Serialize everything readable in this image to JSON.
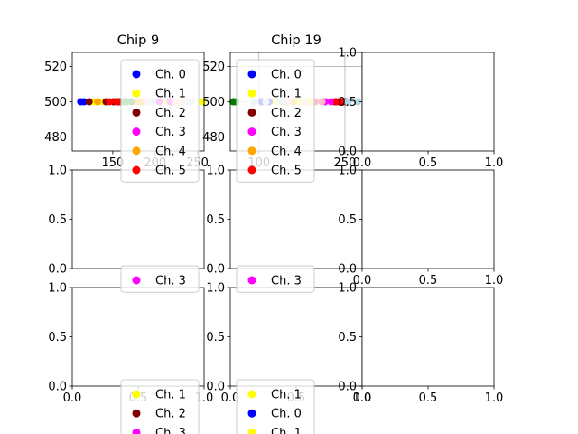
{
  "chart_data": [
    {
      "type": "scatter",
      "title": "Chip 9",
      "xlabel": "",
      "ylabel": "",
      "xlim": [
        102,
        258
      ],
      "ylim": [
        472,
        528
      ],
      "xticks": [
        150,
        200,
        250
      ],
      "yticks": [
        480,
        500,
        520
      ],
      "grid": false,
      "legend_position": "upper-right",
      "series": [
        {
          "name": "Ch. 0",
          "color": "#0000ff",
          "x": [
            112,
            116
          ],
          "y": [
            500,
            500
          ]
        },
        {
          "name": "Ch. 1",
          "color": "#ffff00",
          "x": [
            128,
            138,
            212,
            228,
            256
          ],
          "y": [
            500,
            500,
            500,
            500,
            500
          ]
        },
        {
          "name": "Ch. 2",
          "color": "#800000",
          "x": [
            122,
            142,
            151,
            157
          ],
          "y": [
            500,
            500,
            500,
            500
          ]
        },
        {
          "name": "Ch. 3",
          "color": "#ff00ff",
          "x": [
            205,
            218
          ],
          "y": [
            500,
            500
          ]
        },
        {
          "name": "Ch. 4",
          "color": "#ffa500",
          "x": [
            132,
            178,
            184
          ],
          "y": [
            500,
            500,
            500
          ]
        },
        {
          "name": "Ch. 5",
          "color": "#ff0000",
          "x": [
            146,
            154,
            160
          ],
          "y": [
            500,
            500,
            500
          ]
        },
        {
          "name": "",
          "color": "#008000",
          "x": [
            163,
            166,
            172
          ],
          "y": [
            500,
            500,
            500
          ]
        },
        {
          "name": "",
          "color": "#add8e6",
          "x": [
            196,
            238,
            243
          ],
          "y": [
            500,
            500,
            500
          ]
        },
        {
          "name": "",
          "color": "#ffc0cb",
          "x": [
            190,
            224,
            233
          ],
          "y": [
            500,
            500,
            500
          ]
        }
      ],
      "legend_visible": [
        "Ch. 0",
        "Ch. 1",
        "Ch. 2",
        "Ch. 3",
        "Ch. 4",
        "Ch. 5"
      ]
    },
    {
      "type": "scatter",
      "title": "Chip 19",
      "xlabel": "",
      "ylabel": "",
      "xlim": [
        50,
        280
      ],
      "ylim": [
        472,
        528
      ],
      "xticks": [
        100,
        250
      ],
      "yticks": [
        480,
        500,
        520
      ],
      "grid": true,
      "legend_position": "upper-left",
      "series": [
        {
          "name": "Ch. 0",
          "color": "#0000ff",
          "x": [
            105,
            118
          ],
          "y": [
            500,
            500
          ]
        },
        {
          "name": "Ch. 1",
          "color": "#ffff00",
          "x": [
            130,
            170,
            190
          ],
          "y": [
            500,
            500,
            500
          ]
        },
        {
          "name": "Ch. 2",
          "color": "#800000",
          "x": [
            233,
            240,
            244,
            252
          ],
          "y": [
            500,
            500,
            500,
            500
          ]
        },
        {
          "name": "Ch. 3",
          "color": "#ff00ff",
          "x": [
            215,
            226
          ],
          "y": [
            500,
            500
          ]
        },
        {
          "name": "Ch. 4",
          "color": "#ffa500",
          "x": [
            145,
            160
          ],
          "y": [
            500,
            500
          ]
        },
        {
          "name": "Ch. 5",
          "color": "#ff0000",
          "x": [
            236,
            248
          ],
          "y": [
            500,
            500
          ]
        },
        {
          "name": "",
          "color": "#008000",
          "x": [
            55,
            60
          ],
          "y": [
            500,
            500
          ]
        },
        {
          "name": "",
          "color": "#add8e6",
          "x": [
            92,
            112,
            138,
            255,
            272
          ],
          "y": [
            500,
            500,
            500,
            500,
            500
          ]
        },
        {
          "name": "",
          "color": "#ffc0cb",
          "x": [
            150,
            180,
            198,
            210
          ],
          "y": [
            500,
            500,
            500,
            500
          ]
        }
      ],
      "legend_visible": [
        "Ch. 0",
        "Ch. 1",
        "Ch. 2",
        "Ch. 3",
        "Ch. 4",
        "Ch. 5"
      ]
    },
    {
      "type": "scatter",
      "title": "",
      "xlim": [
        0,
        1
      ],
      "ylim": [
        0,
        1
      ],
      "xticks": [
        "0.0",
        "0.5",
        "1.0"
      ],
      "yticks": [
        "0.0",
        "0.5",
        "1.0"
      ],
      "series": []
    },
    {
      "type": "scatter",
      "title": "",
      "xlim": [
        0,
        1
      ],
      "ylim": [
        0,
        1
      ],
      "xticks": [],
      "yticks": [
        "0.0",
        "0.5",
        "1.0"
      ],
      "series": []
    },
    {
      "type": "scatter",
      "title": "",
      "xlim": [
        0,
        1
      ],
      "ylim": [
        0,
        1
      ],
      "xticks": [],
      "yticks": [
        "0.0",
        "0.5",
        "1.0"
      ],
      "series": []
    },
    {
      "type": "scatter",
      "title": "",
      "xlim": [
        0,
        1
      ],
      "ylim": [
        0,
        1
      ],
      "xticks": [
        "0.0",
        "0.5",
        "1.0"
      ],
      "yticks": [
        "0.0",
        "0.5",
        "1.0"
      ],
      "series": []
    },
    {
      "type": "scatter",
      "title": "",
      "xlim": [
        0,
        1
      ],
      "ylim": [
        0,
        1
      ],
      "xticks": [
        "0.0",
        "0.5",
        "1.0"
      ],
      "yticks": [
        "0.0",
        "0.5",
        "1.0"
      ],
      "series": [],
      "legend_fragment": [
        "Ch. 1",
        "Ch. 2",
        "Ch. 3"
      ]
    },
    {
      "type": "scatter",
      "title": "",
      "xlim": [
        0,
        1
      ],
      "ylim": [
        0,
        1
      ],
      "xticks": [
        "0.0",
        "0.5",
        "1.0"
      ],
      "yticks": [
        "0.0",
        "0.5",
        "1.0"
      ],
      "series": [],
      "legend_fragment": [
        "Ch. 1",
        "Ch. 0",
        "Ch. 1"
      ]
    },
    {
      "type": "scatter",
      "title": "",
      "xlim": [
        0,
        1
      ],
      "ylim": [
        0,
        1
      ],
      "xticks": [
        "0.0",
        "0.5",
        "1.0"
      ],
      "yticks": [
        "0.0",
        "0.5",
        "1.0"
      ],
      "series": []
    }
  ],
  "overlays": {
    "row2_fragment_a": {
      "label": "Ch. 3",
      "color": "#ff00ff"
    },
    "row2_fragment_b": {
      "label": "Ch. 3",
      "color": "#ff00ff"
    },
    "bottom_fragment_a": [
      {
        "label": "Ch. 1",
        "color": "#ffff00"
      },
      {
        "label": "Ch. 2",
        "color": "#800000"
      },
      {
        "label": "Ch. 3",
        "color": "#ff00ff"
      }
    ],
    "bottom_fragment_b": [
      {
        "label": "Ch. 1",
        "color": "#ffff00"
      },
      {
        "label": "Ch. 0",
        "color": "#0000ff"
      },
      {
        "label": "Ch. 1",
        "color": "#ffff00"
      }
    ]
  }
}
